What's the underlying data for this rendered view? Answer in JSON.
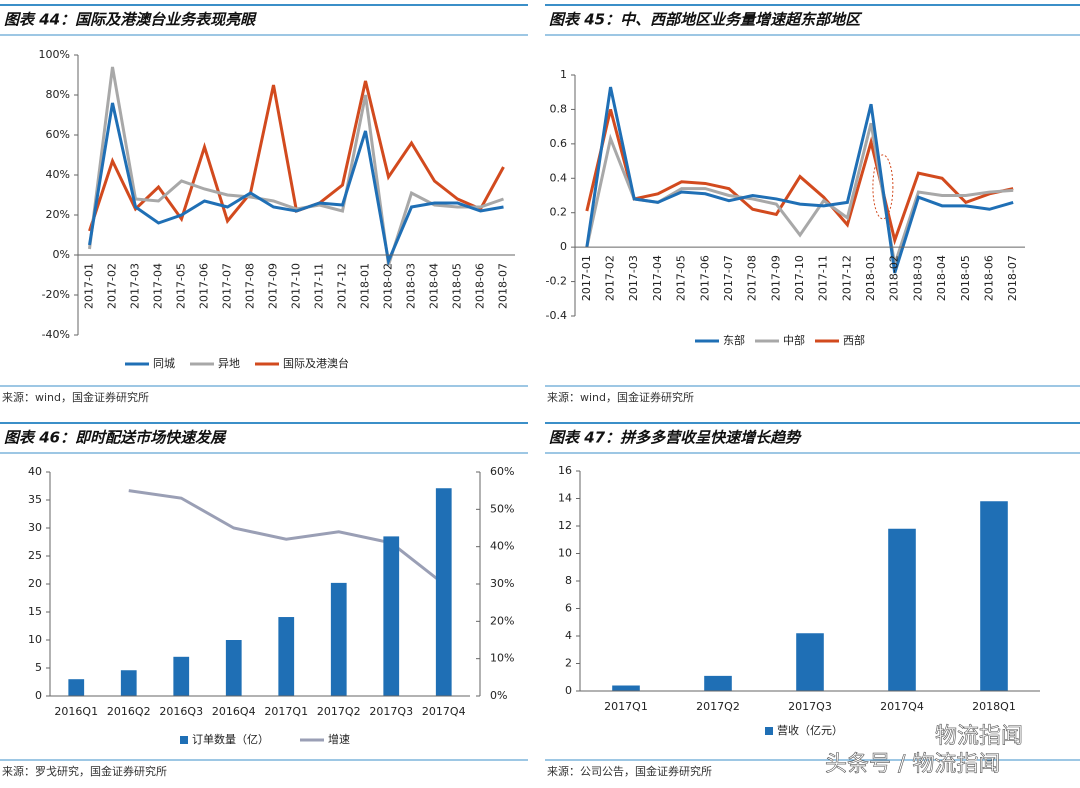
{
  "chart_data": [
    {
      "type": "line",
      "title": "图表 44：国际及港澳台业务表现亮眼",
      "source": "来源：wind，国金证券研究所",
      "categories": [
        "2017-01",
        "2017-02",
        "2017-03",
        "2017-04",
        "2017-05",
        "2017-06",
        "2017-07",
        "2017-08",
        "2017-09",
        "2017-10",
        "2017-11",
        "2017-12",
        "2018-01",
        "2018-02",
        "2018-03",
        "2018-04",
        "2018-05",
        "2018-06",
        "2018-07"
      ],
      "series": [
        {
          "name": "同城",
          "color": "#1f6fb5",
          "values": [
            5,
            76,
            24,
            16,
            20,
            27,
            24,
            31,
            24,
            22,
            26,
            25,
            62,
            -3,
            24,
            26,
            26,
            22,
            24
          ]
        },
        {
          "name": "异地",
          "color": "#a8a8a8",
          "values": [
            3,
            94,
            28,
            27,
            37,
            33,
            30,
            29,
            27,
            23,
            25,
            22,
            80,
            -5,
            31,
            25,
            24,
            24,
            28
          ]
        },
        {
          "name": "国际及港澳台",
          "color": "#d24a1e",
          "values": [
            12,
            47,
            23,
            34,
            18,
            54,
            17,
            31,
            85,
            22,
            26,
            35,
            87,
            39,
            56,
            37,
            28,
            23,
            44
          ]
        }
      ],
      "ylim": [
        -40,
        100
      ],
      "yticks": [
        {
          "value": -40,
          "label": "-40%"
        },
        {
          "value": -20,
          "label": "-20%"
        },
        {
          "value": 0,
          "label": "0%"
        },
        {
          "value": 20,
          "label": "20%"
        },
        {
          "value": 40,
          "label": "40%"
        },
        {
          "value": 60,
          "label": "60%"
        },
        {
          "value": 80,
          "label": "80%"
        },
        {
          "value": 100,
          "label": "100%"
        }
      ]
    },
    {
      "type": "line",
      "title": "图表 45：中、西部地区业务量增速超东部地区",
      "source": "来源：wind，国金证券研究所",
      "categories": [
        "2017-01",
        "2017-02",
        "2017-03",
        "2017-04",
        "2017-05",
        "2017-06",
        "2017-07",
        "2017-08",
        "2017-09",
        "2017-10",
        "2017-11",
        "2017-12",
        "2018-01",
        "2018-02",
        "2018-03",
        "2018-04",
        "2018-05",
        "2018-06",
        "2018-07"
      ],
      "series": [
        {
          "name": "东部",
          "color": "#1f6fb5",
          "values": [
            0,
            0.93,
            0.28,
            0.26,
            0.32,
            0.31,
            0.27,
            0.3,
            0.28,
            0.25,
            0.24,
            0.26,
            0.83,
            -0.15,
            0.29,
            0.24,
            0.24,
            0.22,
            0.26
          ]
        },
        {
          "name": "中部",
          "color": "#a8a8a8",
          "values": [
            0,
            0.63,
            0.28,
            0.26,
            0.34,
            0.34,
            0.3,
            0.28,
            0.25,
            0.07,
            0.27,
            0.17,
            0.72,
            -0.1,
            0.32,
            0.3,
            0.3,
            0.32,
            0.33
          ]
        },
        {
          "name": "西部",
          "color": "#d24a1e",
          "values": [
            0.21,
            0.8,
            0.28,
            0.31,
            0.38,
            0.37,
            0.34,
            0.22,
            0.19,
            0.41,
            0.29,
            0.13,
            0.61,
            0.04,
            0.43,
            0.4,
            0.26,
            0.31,
            0.34
          ]
        }
      ],
      "ylim": [
        -0.4,
        1
      ],
      "yticks": [
        -0.4,
        -0.2,
        0,
        0.2,
        0.4,
        0.6,
        0.8,
        1
      ]
    },
    {
      "type": "bar",
      "title": "图表 46：即时配送市场快速发展",
      "source": "来源：罗戈研究，国金证券研究所",
      "categories": [
        "2016Q1",
        "2016Q2",
        "2016Q3",
        "2016Q4",
        "2017Q1",
        "2017Q2",
        "2017Q3",
        "2017Q4"
      ],
      "series": [
        {
          "name": "订单数量（亿）",
          "color": "#1f6fb5",
          "values": [
            3,
            4.6,
            7,
            10,
            14.1,
            20.2,
            28.5,
            37.1
          ]
        },
        {
          "name": "增速",
          "type": "line",
          "axis": "y2",
          "color": "#9a9fb5",
          "values": [
            null,
            55,
            53,
            45,
            42,
            44,
            41,
            30
          ]
        }
      ],
      "ylim": [
        0,
        40
      ],
      "yticks": [
        0,
        5,
        10,
        15,
        20,
        25,
        30,
        35,
        40
      ],
      "y2lim": [
        0,
        60
      ],
      "y2ticks": [
        {
          "value": 0,
          "label": "0%"
        },
        {
          "value": 10,
          "label": "10%"
        },
        {
          "value": 20,
          "label": "20%"
        },
        {
          "value": 30,
          "label": "30%"
        },
        {
          "value": 40,
          "label": "40%"
        },
        {
          "value": 50,
          "label": "50%"
        },
        {
          "value": 60,
          "label": "60%"
        }
      ]
    },
    {
      "type": "bar",
      "title": "图表 47：拼多多营收呈快速增长趋势",
      "source": "来源：公司公告，国金证券研究所",
      "categories": [
        "2017Q1",
        "2017Q2",
        "2017Q3",
        "2017Q4",
        "2018Q1"
      ],
      "series": [
        {
          "name": "营收（亿元）",
          "color": "#1f6fb5",
          "values": [
            0.4,
            1.1,
            4.2,
            11.8,
            13.8
          ]
        }
      ],
      "ylim": [
        0,
        16
      ],
      "yticks": [
        0,
        2,
        4,
        6,
        8,
        10,
        12,
        14,
        16
      ]
    }
  ],
  "watermark": "头条号 / 物流指闻",
  "logo": "物流指闻"
}
